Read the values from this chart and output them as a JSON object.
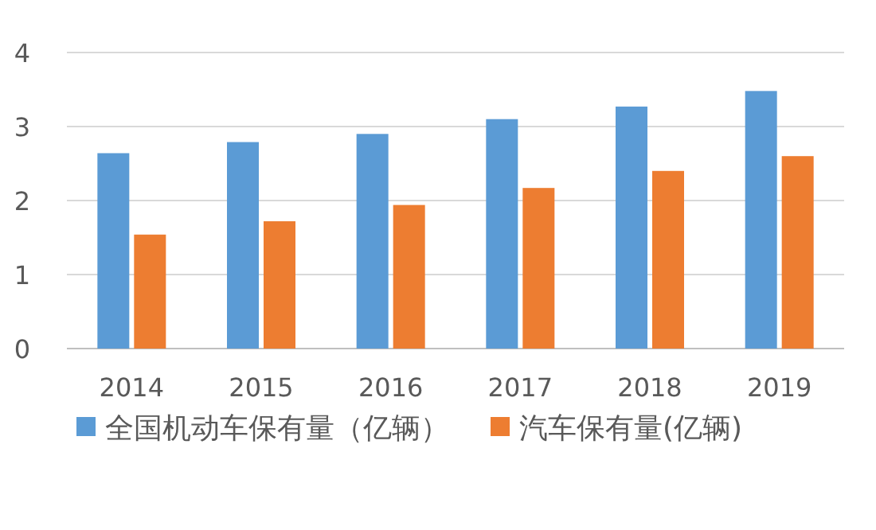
{
  "chart_data": {
    "type": "bar",
    "categories": [
      "2014",
      "2015",
      "2016",
      "2017",
      "2018",
      "2019"
    ],
    "series": [
      {
        "name": "全国机动车保有量（亿辆）",
        "color": "#5b9bd5",
        "values": [
          2.64,
          2.79,
          2.9,
          3.1,
          3.27,
          3.48
        ]
      },
      {
        "name": "汽车保有量(亿辆)",
        "color": "#ed7d31",
        "values": [
          1.54,
          1.72,
          1.94,
          2.17,
          2.4,
          2.6
        ]
      }
    ],
    "ylim": [
      0,
      4
    ],
    "yticks": [
      0,
      1,
      2,
      3,
      4
    ],
    "grid": "y",
    "legend": "bottom"
  }
}
